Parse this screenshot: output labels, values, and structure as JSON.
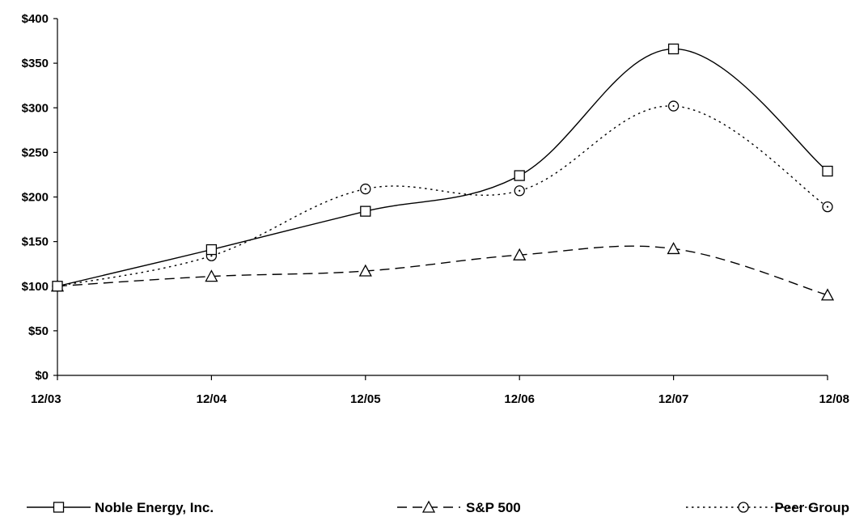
{
  "chart_data": {
    "type": "line",
    "categories": [
      "12/03",
      "12/04",
      "12/05",
      "12/06",
      "12/07",
      "12/08"
    ],
    "ylim": [
      0,
      400
    ],
    "yticks": [
      0,
      50,
      100,
      150,
      200,
      250,
      300,
      350,
      400
    ],
    "ytick_labels": [
      "$0",
      "$50",
      "$100",
      "$150",
      "$200",
      "$250",
      "$300",
      "$350",
      "$400"
    ],
    "grid": false,
    "legend_position": "bottom",
    "series": [
      {
        "name": "Noble Energy, Inc.",
        "values": [
          100,
          141,
          184,
          224,
          366,
          229
        ],
        "line_style": "solid",
        "marker": "square",
        "color": "#000000"
      },
      {
        "name": "S&P 500",
        "values": [
          100,
          111,
          117,
          135,
          142,
          90
        ],
        "line_style": "dashed",
        "marker": "triangle",
        "color": "#000000"
      },
      {
        "name": "Peer Group",
        "values": [
          100,
          134,
          209,
          207,
          302,
          189
        ],
        "line_style": "dotted",
        "marker": "circle",
        "color": "#000000"
      }
    ]
  }
}
